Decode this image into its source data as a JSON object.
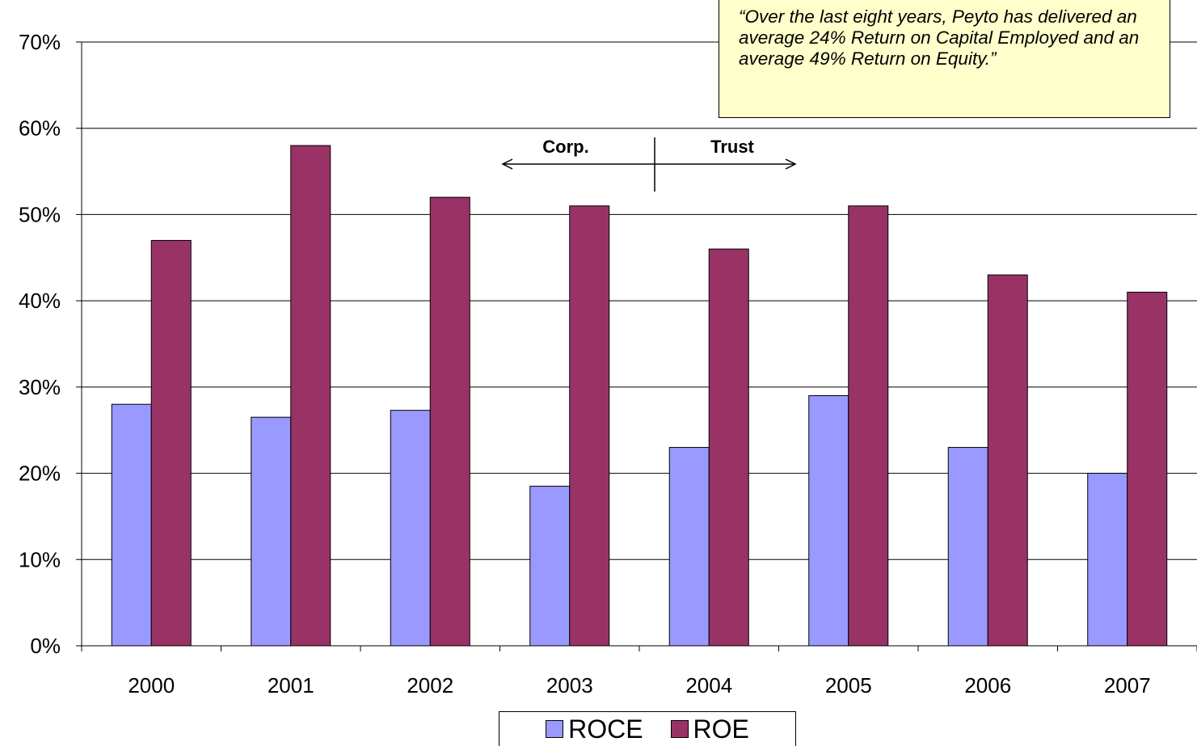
{
  "colors": {
    "roce": "#9999ff",
    "roe": "#993366",
    "callout_bg": "#ffffcc"
  },
  "callout": {
    "text": "“Over the last eight years, Peyto has delivered an average 24% Return on Capital Employed and an average 49% Return on Equity.”"
  },
  "annotation": {
    "left_label": "Corp.",
    "right_label": "Trust"
  },
  "legend": {
    "items": [
      "ROCE",
      "ROE"
    ]
  },
  "chart_data": {
    "type": "bar",
    "categories": [
      "2000",
      "2001",
      "2002",
      "2003",
      "2004",
      "2005",
      "2006",
      "2007"
    ],
    "series": [
      {
        "name": "ROCE",
        "values": [
          28,
          26.5,
          27.3,
          18.5,
          23,
          29,
          23,
          20
        ]
      },
      {
        "name": "ROE",
        "values": [
          47,
          58,
          52,
          51,
          46,
          51,
          43,
          41
        ]
      }
    ],
    "ylim": [
      0,
      70
    ],
    "yticks": [
      "0%",
      "10%",
      "20%",
      "30%",
      "40%",
      "50%",
      "60%",
      "70%"
    ],
    "grid": true,
    "legend_position": "bottom"
  }
}
